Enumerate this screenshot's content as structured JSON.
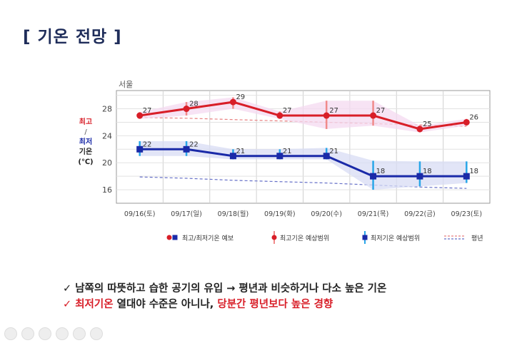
{
  "slide_title": "[ 기온 전망 ]",
  "ylabel": {
    "high": "최고",
    "slash": "/",
    "low": "최저",
    "rest": "기온",
    "unit": "(℃)"
  },
  "colors": {
    "high": "#d81e28",
    "high_band": "#f4d9f0",
    "high_range": "#f08a8a",
    "low": "#1a2aa8",
    "low_band": "#d8dcf4",
    "low_range": "#29a6e8",
    "normal_high": "#e88080",
    "normal_low": "#6670c8"
  },
  "chart_data": {
    "type": "line",
    "title": "서울",
    "categories": [
      "09/16(토)",
      "09/17(일)",
      "09/18(월)",
      "09/19(화)",
      "09/20(수)",
      "09/21(목)",
      "09/22(금)",
      "09/23(토)"
    ],
    "ylim": [
      14,
      30.7
    ],
    "yticks": [
      16,
      20,
      24,
      28
    ],
    "grid": true,
    "series": [
      {
        "name": "최고기온",
        "values": [
          27,
          28,
          29,
          27,
          27,
          27,
          25,
          26
        ],
        "range_low": [
          26.5,
          27,
          28,
          26.5,
          25,
          25.5,
          24.5,
          25.5
        ],
        "range_high": [
          27.5,
          29,
          29.7,
          27.6,
          29.2,
          29.2,
          25.5,
          26.5
        ]
      },
      {
        "name": "최저기온",
        "values": [
          22,
          22,
          21,
          21,
          21,
          18,
          18,
          18
        ],
        "range_low": [
          21,
          21,
          20.5,
          20.5,
          20.5,
          16,
          16.5,
          17
        ],
        "range_high": [
          23.2,
          23.2,
          22,
          22,
          22.2,
          20.3,
          20.2,
          20.2
        ]
      }
    ],
    "normal_high": [
      26.7,
      26.6,
      26.4,
      26.2,
      26,
      25.8,
      25.6,
      25.4
    ],
    "normal_low": [
      17.9,
      17.7,
      17.4,
      17.2,
      17,
      16.7,
      16.4,
      16.2
    ],
    "legend": [
      {
        "key": "forecast",
        "label": "최고/최저기온 예보"
      },
      {
        "key": "high_range",
        "label": "최고기온 예상범위"
      },
      {
        "key": "low_range",
        "label": "최저기온 예상범위"
      },
      {
        "key": "normal",
        "label": "평년"
      }
    ],
    "legend_position": "bottom"
  },
  "bullets": [
    {
      "check": "✓",
      "parts": [
        {
          "text": "남쪽의 따뜻하고 습한 공기의 유입 → 평년과 비슷하거나 다소 높은 기온",
          "red": false
        }
      ]
    },
    {
      "check": "✓",
      "parts": [
        {
          "text": "최저기온",
          "red": true
        },
        {
          "text": " 열대야 수준은 아니나, ",
          "red": false
        },
        {
          "text": "당분간 평년보다 높은 경향",
          "red": true
        }
      ]
    }
  ]
}
